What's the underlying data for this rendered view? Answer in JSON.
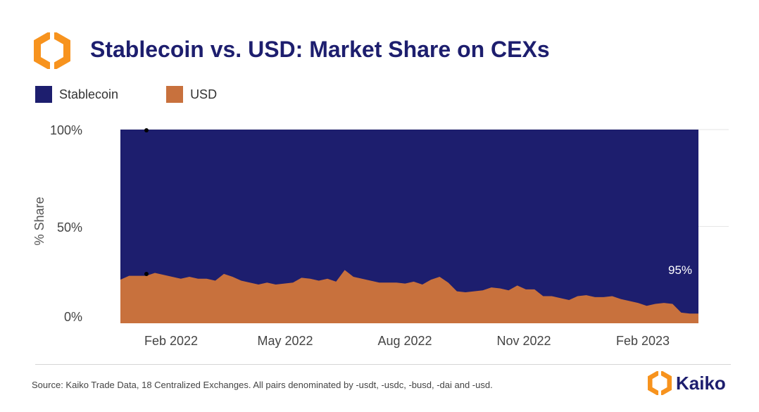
{
  "header": {
    "title": "Stablecoin vs. USD: Market Share on CEXs"
  },
  "legend": {
    "items": [
      {
        "label": "Stablecoin",
        "color": "#1d1e6e"
      },
      {
        "label": "USD",
        "color": "#c8713d"
      }
    ]
  },
  "footer": {
    "source": "Source: Kaiko Trade Data, 18 Centralized Exchanges. All pairs denominated by -usdt, -usdc, -busd, -dai and -usd.",
    "brand": "Kaiko"
  },
  "colors": {
    "stablecoin": "#1d1e6e",
    "usd": "#c8713d",
    "logo_orange": "#f7931e"
  },
  "chart_data": {
    "type": "area",
    "stacked": true,
    "ylabel": "% Share",
    "ylim": [
      0,
      100
    ],
    "y_ticks": [
      "0%",
      "50%",
      "100%"
    ],
    "x_tick_labels": [
      "Feb 2022",
      "May 2022",
      "Aug 2022",
      "Nov 2022",
      "Feb 2023"
    ],
    "annotation": "95%",
    "legend_position": "top-left",
    "grid": true,
    "series": [
      {
        "name": "USD",
        "color": "#c8713d",
        "values": [
          22.5,
          24.5,
          24.5,
          24.5,
          26,
          25,
          24,
          23,
          24,
          23,
          23,
          22,
          25.5,
          24,
          22,
          21,
          20,
          21,
          20,
          20.5,
          21,
          23.5,
          23,
          22,
          23,
          21.5,
          27.5,
          24,
          23,
          22,
          21,
          21,
          21,
          20.5,
          21.5,
          20,
          22.5,
          24,
          21,
          16.5,
          16,
          16.5,
          17,
          18.5,
          18,
          17,
          19.5,
          17.5,
          17.5,
          14,
          14,
          13,
          12,
          14,
          14.5,
          13.5,
          13.5,
          14,
          12.5,
          11.5,
          10.5,
          9,
          10,
          10.5,
          10,
          5.5,
          5,
          5
        ]
      },
      {
        "name": "Stablecoin",
        "color": "#1d1e6e",
        "values": [
          77.5,
          75.5,
          75.5,
          75.5,
          74,
          75,
          76,
          77,
          76,
          77,
          77,
          78,
          74.5,
          76,
          78,
          79,
          80,
          79,
          80,
          79.5,
          79,
          76.5,
          77,
          78,
          77,
          78.5,
          72.5,
          76,
          77,
          78,
          79,
          79,
          79,
          79.5,
          78.5,
          80,
          77.5,
          76,
          79,
          83.5,
          84,
          83.5,
          83,
          81.5,
          82,
          83,
          80.5,
          82.5,
          82.5,
          86,
          86,
          87,
          88,
          86,
          85.5,
          86.5,
          86.5,
          86,
          87.5,
          88.5,
          89.5,
          91,
          90,
          89.5,
          90,
          94.5,
          95,
          95
        ]
      }
    ]
  }
}
